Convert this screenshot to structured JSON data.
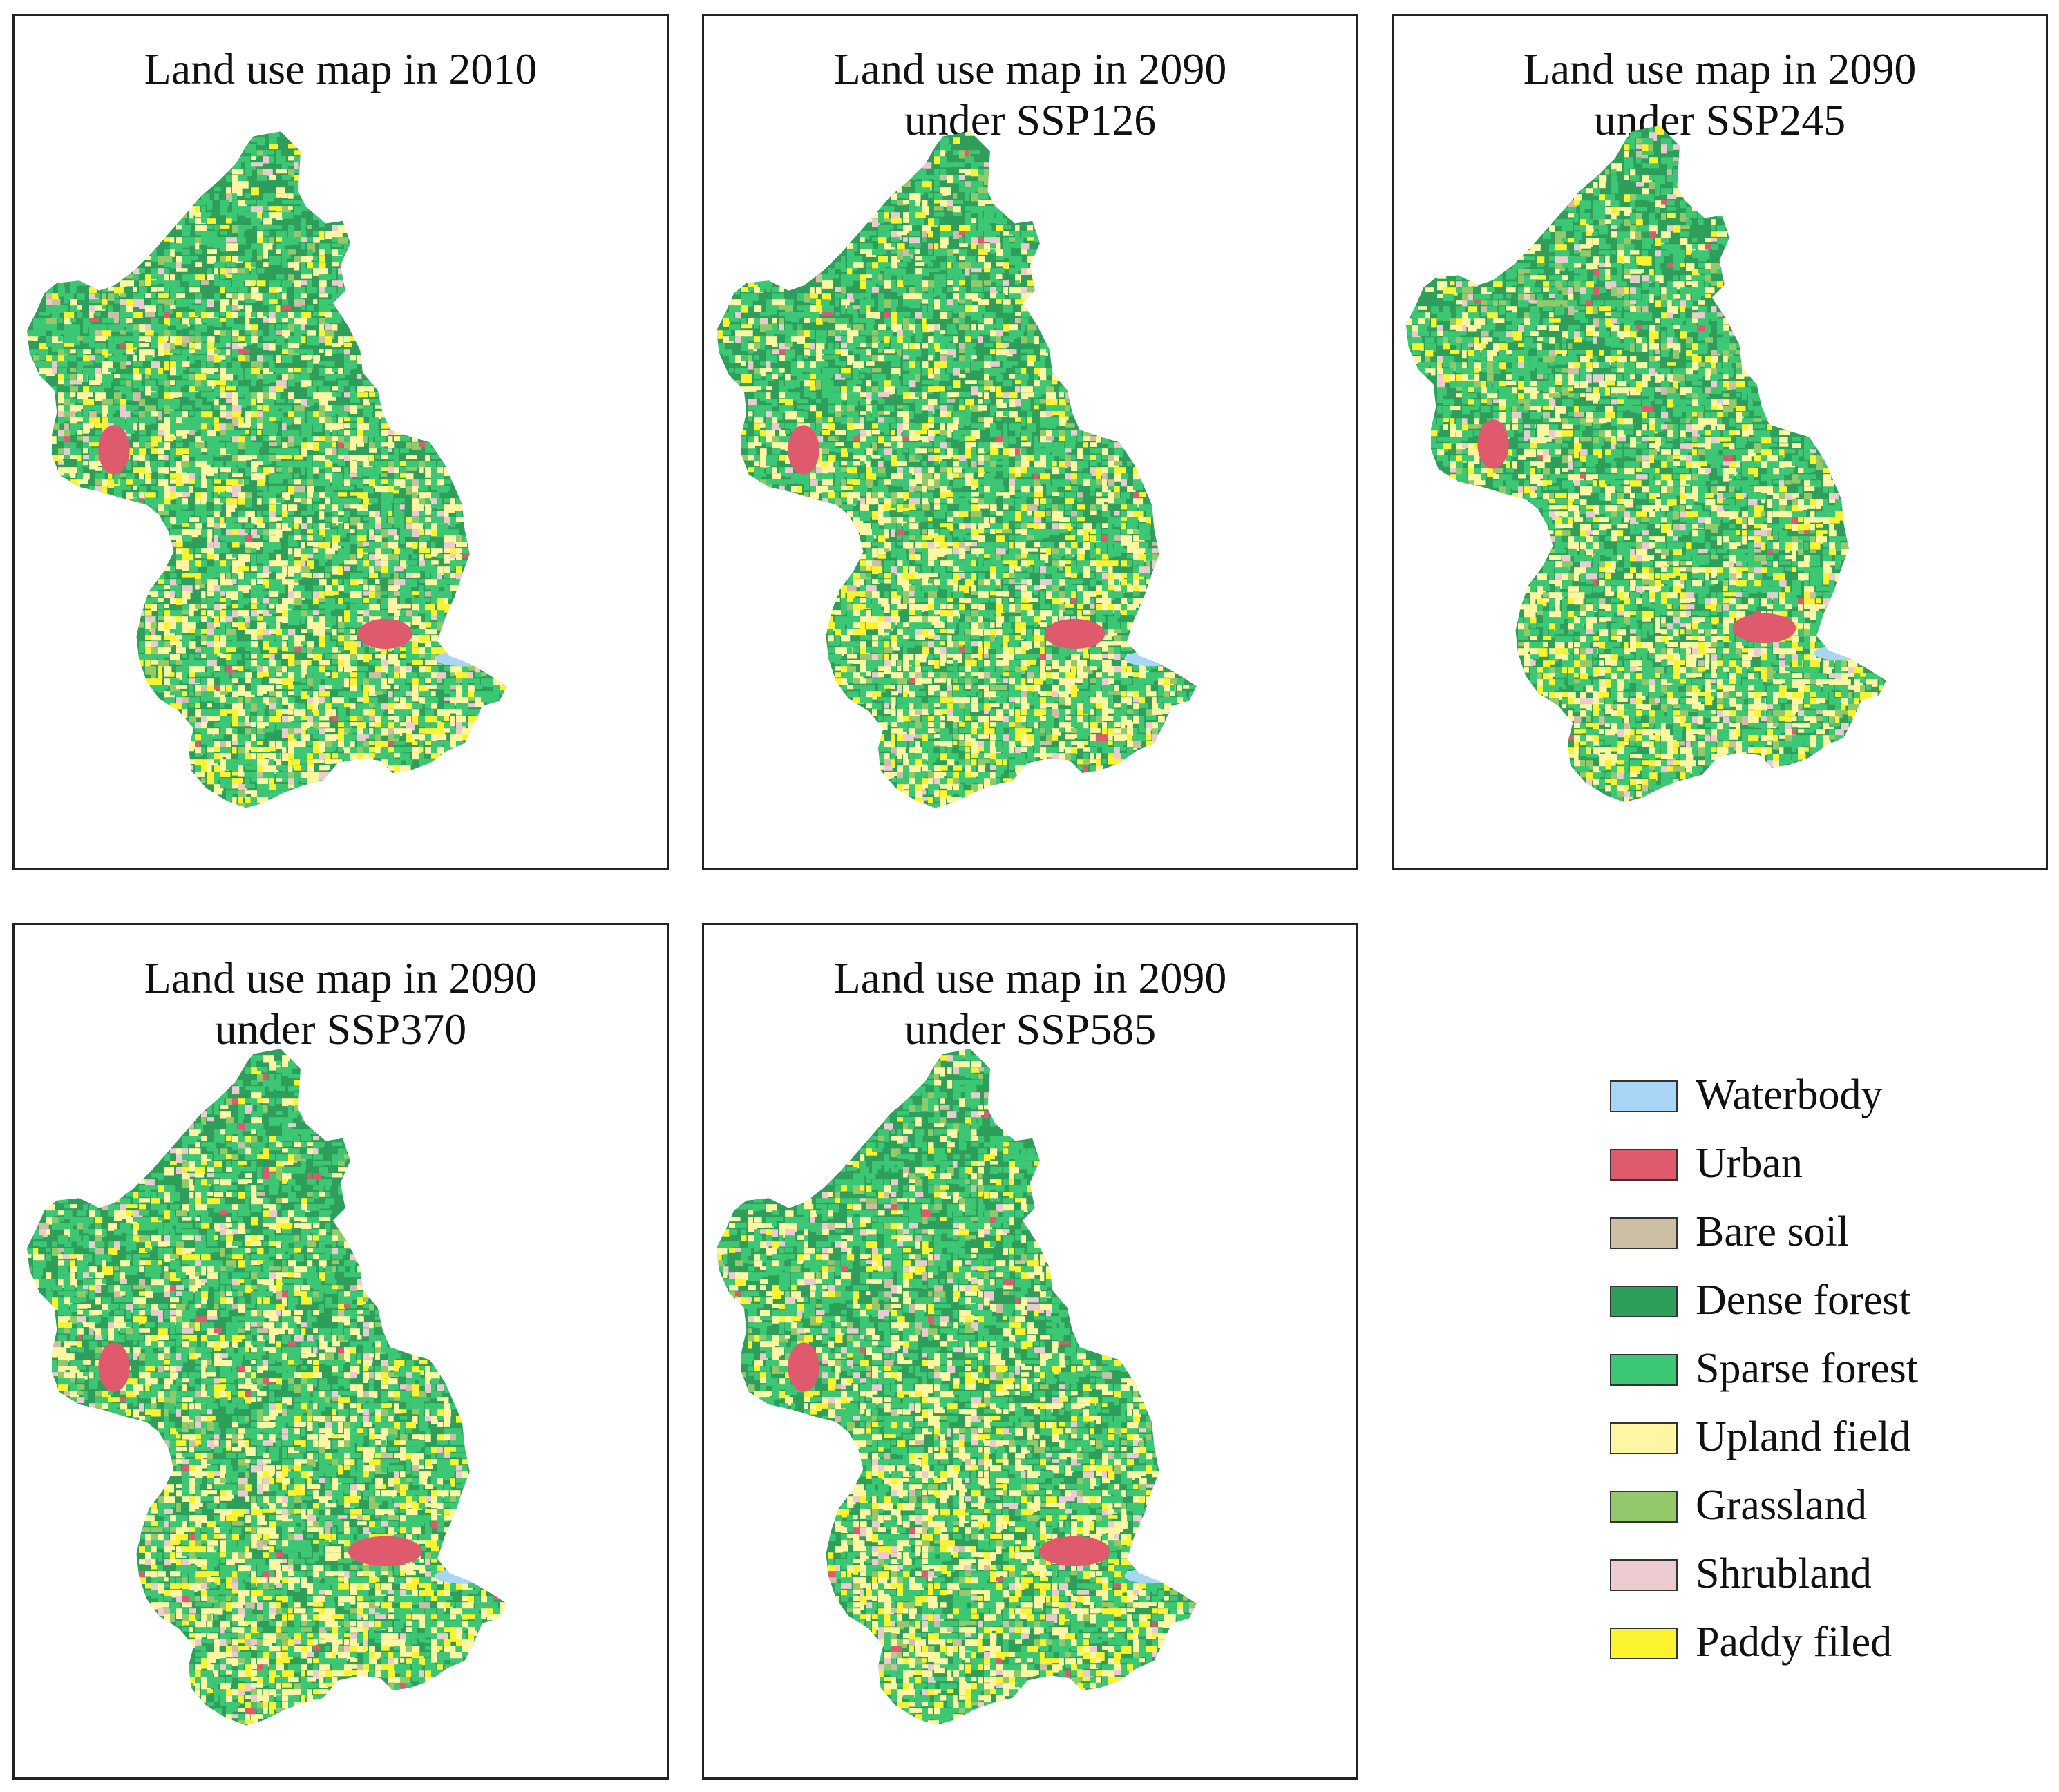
{
  "panels": [
    {
      "title_line1": "Land use map in 2010",
      "title_line2": ""
    },
    {
      "title_line1": "Land use map in 2090",
      "title_line2": "under SSP126"
    },
    {
      "title_line1": "Land use map in 2090",
      "title_line2": "under SSP245"
    },
    {
      "title_line1": "Land use map in 2090",
      "title_line2": "under SSP370"
    },
    {
      "title_line1": "Land use map in 2090",
      "title_line2": "under SSP585"
    }
  ],
  "legend": [
    {
      "label": "Waterbody",
      "color": "#a9d6f5"
    },
    {
      "label": "Urban",
      "color": "#e05a6e"
    },
    {
      "label": "Bare soil",
      "color": "#cdbfa6"
    },
    {
      "label": "Dense forest",
      "color": "#2e9e5b"
    },
    {
      "label": "Sparse forest",
      "color": "#3cc775"
    },
    {
      "label": "Upland field",
      "color": "#fff6a3"
    },
    {
      "label": "Grassland",
      "color": "#93c96a"
    },
    {
      "label": "Shrubland",
      "color": "#ebcad0"
    },
    {
      "label": "Paddy filed",
      "color": "#fbf230"
    }
  ]
}
